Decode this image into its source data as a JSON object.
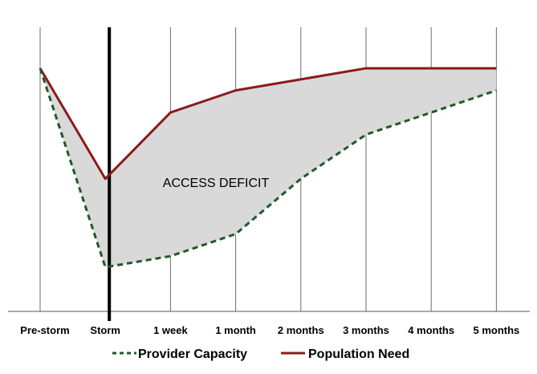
{
  "chart_data": {
    "type": "line",
    "categories": [
      "Pre-storm",
      "Storm",
      "1 week",
      "1 month",
      "2 months",
      "3 months",
      "4 months",
      "5 months"
    ],
    "series": [
      {
        "name": "Provider Capacity",
        "values": [
          100,
          10,
          15,
          25,
          50,
          70,
          80,
          90
        ],
        "color": "#1e5a2a",
        "style": "dashed"
      },
      {
        "name": "Population Need",
        "values": [
          100,
          50,
          80,
          90,
          95,
          100,
          100,
          100
        ],
        "color": "#8b1a1a",
        "style": "solid"
      }
    ],
    "shaded_area": {
      "between": [
        "Population Need",
        "Provider Capacity"
      ],
      "color": "#d9d9d9"
    },
    "annotations": [
      {
        "text": "ACCESS DEFICIT"
      }
    ],
    "event_marker": {
      "at": "Storm",
      "color": "#000000"
    },
    "ylim": [
      -10,
      120
    ],
    "grid": "vertical",
    "legend": "bottom",
    "title": "",
    "xlabel": "",
    "ylabel": ""
  }
}
